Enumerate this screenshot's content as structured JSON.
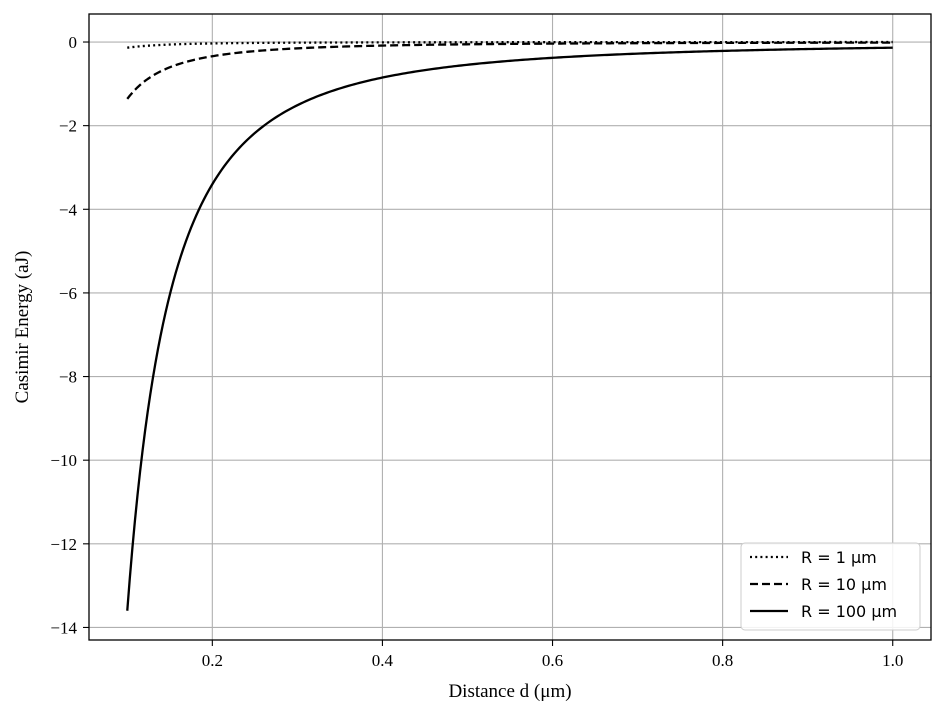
{
  "chart_data": {
    "type": "line",
    "title": "",
    "xlabel": "Distance d (μm)",
    "ylabel": "Casimir Energy (aJ)",
    "xlim": [
      0.055,
      1.045
    ],
    "ylim": [
      -14.3,
      0.67
    ],
    "xticks": [
      0.2,
      0.4,
      0.6,
      0.8,
      1.0
    ],
    "xtick_labels": [
      "0.2",
      "0.4",
      "0.6",
      "0.8",
      "1.0"
    ],
    "yticks": [
      0,
      -2,
      -4,
      -6,
      -8,
      -10,
      -12,
      -14
    ],
    "ytick_labels": [
      "0",
      "−2",
      "−4",
      "−6",
      "−8",
      "−10",
      "−12",
      "−14"
    ],
    "grid": true,
    "legend_position": "lower-right",
    "x": [
      0.1,
      0.12,
      0.14,
      0.16,
      0.18,
      0.2,
      0.25,
      0.3,
      0.35,
      0.4,
      0.5,
      0.6,
      0.7,
      0.8,
      0.9,
      1.0
    ],
    "series": [
      {
        "name": "R = 1 μm",
        "style": "dotted",
        "values": [
          -0.136,
          -0.095,
          -0.069,
          -0.053,
          -0.042,
          -0.034,
          -0.022,
          -0.015,
          -0.011,
          -0.0085,
          -0.0054,
          -0.0038,
          -0.0028,
          -0.0021,
          -0.0017,
          -0.0014
        ]
      },
      {
        "name": "R = 10 μm",
        "style": "dashed",
        "values": [
          -1.36,
          -0.945,
          -0.694,
          -0.531,
          -0.42,
          -0.34,
          -0.218,
          -0.151,
          -0.111,
          -0.085,
          -0.054,
          -0.038,
          -0.028,
          -0.021,
          -0.017,
          -0.014
        ]
      },
      {
        "name": "R = 100 μm",
        "style": "solid",
        "values": [
          -13.6,
          -9.44,
          -6.94,
          -5.31,
          -4.2,
          -3.4,
          -2.18,
          -1.51,
          -1.11,
          -0.85,
          -0.544,
          -0.378,
          -0.278,
          -0.213,
          -0.168,
          -0.136
        ]
      }
    ],
    "colors": {
      "line": "#000000",
      "grid": "#b0b0b0",
      "background": "#ffffff"
    }
  }
}
